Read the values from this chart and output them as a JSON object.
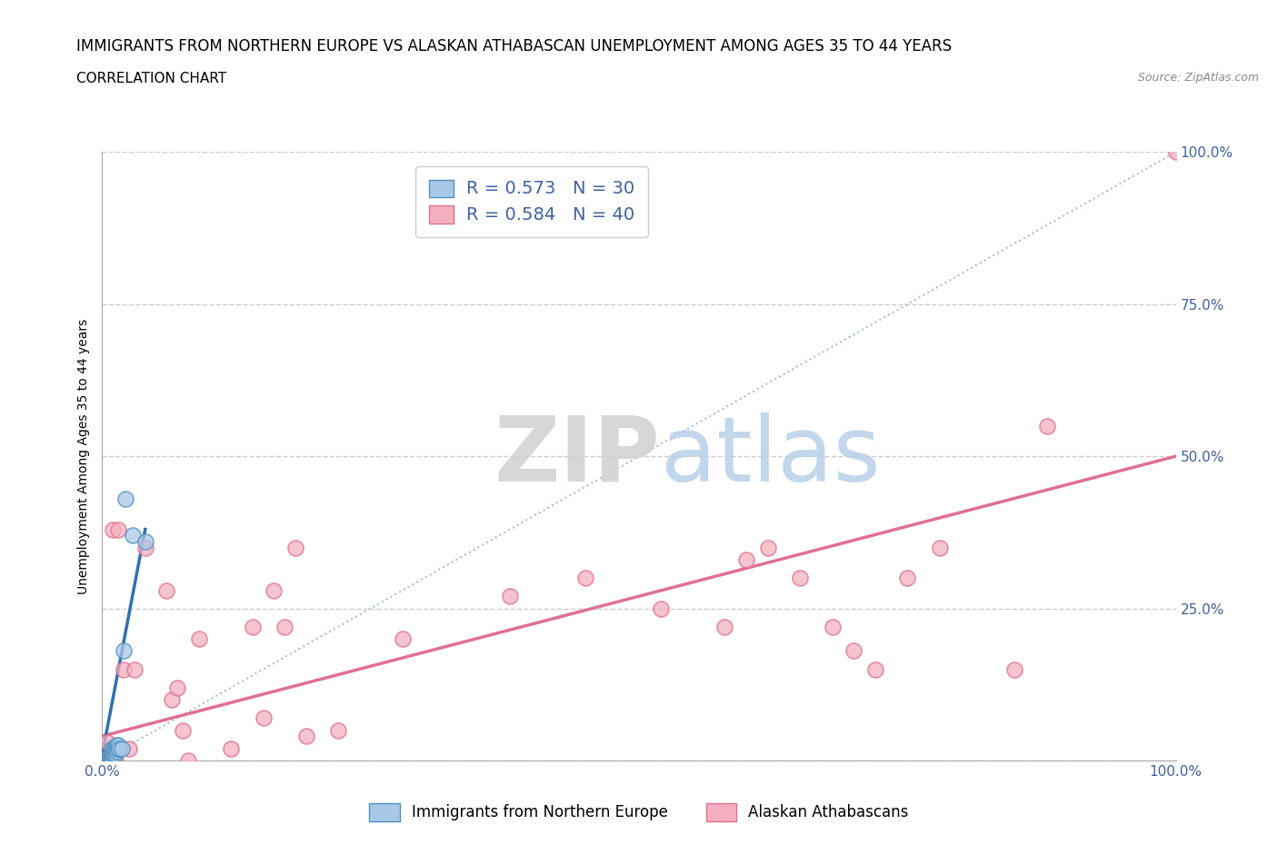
{
  "title": "IMMIGRANTS FROM NORTHERN EUROPE VS ALASKAN ATHABASCAN UNEMPLOYMENT AMONG AGES 35 TO 44 YEARS",
  "subtitle": "CORRELATION CHART",
  "source": "Source: ZipAtlas.com",
  "ylabel": "Unemployment Among Ages 35 to 44 years",
  "xlim": [
    0.0,
    1.0
  ],
  "ylim": [
    0.0,
    1.0
  ],
  "xticks": [
    0.0,
    0.25,
    0.5,
    0.75,
    1.0
  ],
  "yticks": [
    0.0,
    0.25,
    0.5,
    0.75,
    1.0
  ],
  "legend_blue_R": "0.573",
  "legend_blue_N": "30",
  "legend_pink_R": "0.584",
  "legend_pink_N": "40",
  "legend_label_blue": "Immigrants from Northern Europe",
  "legend_label_pink": "Alaskan Athabascans",
  "watermark_ZIP": "ZIP",
  "watermark_atlas": "atlas",
  "blue_scatter_x": [
    0.003,
    0.004,
    0.005,
    0.005,
    0.006,
    0.006,
    0.007,
    0.007,
    0.008,
    0.008,
    0.009,
    0.009,
    0.009,
    0.01,
    0.01,
    0.01,
    0.011,
    0.011,
    0.012,
    0.012,
    0.013,
    0.013,
    0.014,
    0.015,
    0.016,
    0.018,
    0.02,
    0.022,
    0.028,
    0.04
  ],
  "blue_scatter_y": [
    0.0,
    0.0,
    0.0,
    0.005,
    0.0,
    0.005,
    0.0,
    0.005,
    0.005,
    0.01,
    0.005,
    0.01,
    0.02,
    0.0,
    0.01,
    0.015,
    0.01,
    0.02,
    0.01,
    0.02,
    0.015,
    0.025,
    0.02,
    0.025,
    0.02,
    0.02,
    0.18,
    0.43,
    0.37,
    0.36
  ],
  "pink_scatter_x": [
    0.003,
    0.005,
    0.008,
    0.01,
    0.012,
    0.015,
    0.02,
    0.025,
    0.03,
    0.04,
    0.06,
    0.065,
    0.07,
    0.075,
    0.08,
    0.09,
    0.12,
    0.14,
    0.15,
    0.16,
    0.17,
    0.18,
    0.19,
    0.22,
    0.28,
    0.38,
    0.45,
    0.52,
    0.58,
    0.6,
    0.62,
    0.65,
    0.68,
    0.7,
    0.72,
    0.75,
    0.78,
    0.85,
    0.88,
    1.0
  ],
  "pink_scatter_y": [
    0.0,
    0.03,
    0.01,
    0.38,
    0.0,
    0.38,
    0.15,
    0.02,
    0.15,
    0.35,
    0.28,
    0.1,
    0.12,
    0.05,
    0.0,
    0.2,
    0.02,
    0.22,
    0.07,
    0.28,
    0.22,
    0.35,
    0.04,
    0.05,
    0.2,
    0.27,
    0.3,
    0.25,
    0.22,
    0.33,
    0.35,
    0.3,
    0.22,
    0.18,
    0.15,
    0.3,
    0.35,
    0.15,
    0.55,
    1.0
  ],
  "blue_line_x": [
    0.0,
    0.04
  ],
  "blue_line_y": [
    0.01,
    0.38
  ],
  "pink_line_x": [
    0.0,
    1.0
  ],
  "pink_line_y": [
    0.04,
    0.5
  ],
  "diag_line_x": [
    0.0,
    1.0
  ],
  "diag_line_y": [
    0.0,
    1.0
  ],
  "color_blue_fill": "#a8c8e8",
  "color_blue_edge": "#5090c0",
  "color_pink_fill": "#f4b0c0",
  "color_pink_edge": "#e07090",
  "color_blue_line": "#3070b0",
  "color_pink_line": "#e07090",
  "color_diag": "#a0b8d0",
  "background_color": "#ffffff",
  "grid_color": "#cccccc",
  "tick_color": "#4060a0",
  "title_fontsize": 12,
  "subtitle_fontsize": 11,
  "axis_label_fontsize": 10,
  "tick_fontsize": 11,
  "legend_fontsize": 13
}
